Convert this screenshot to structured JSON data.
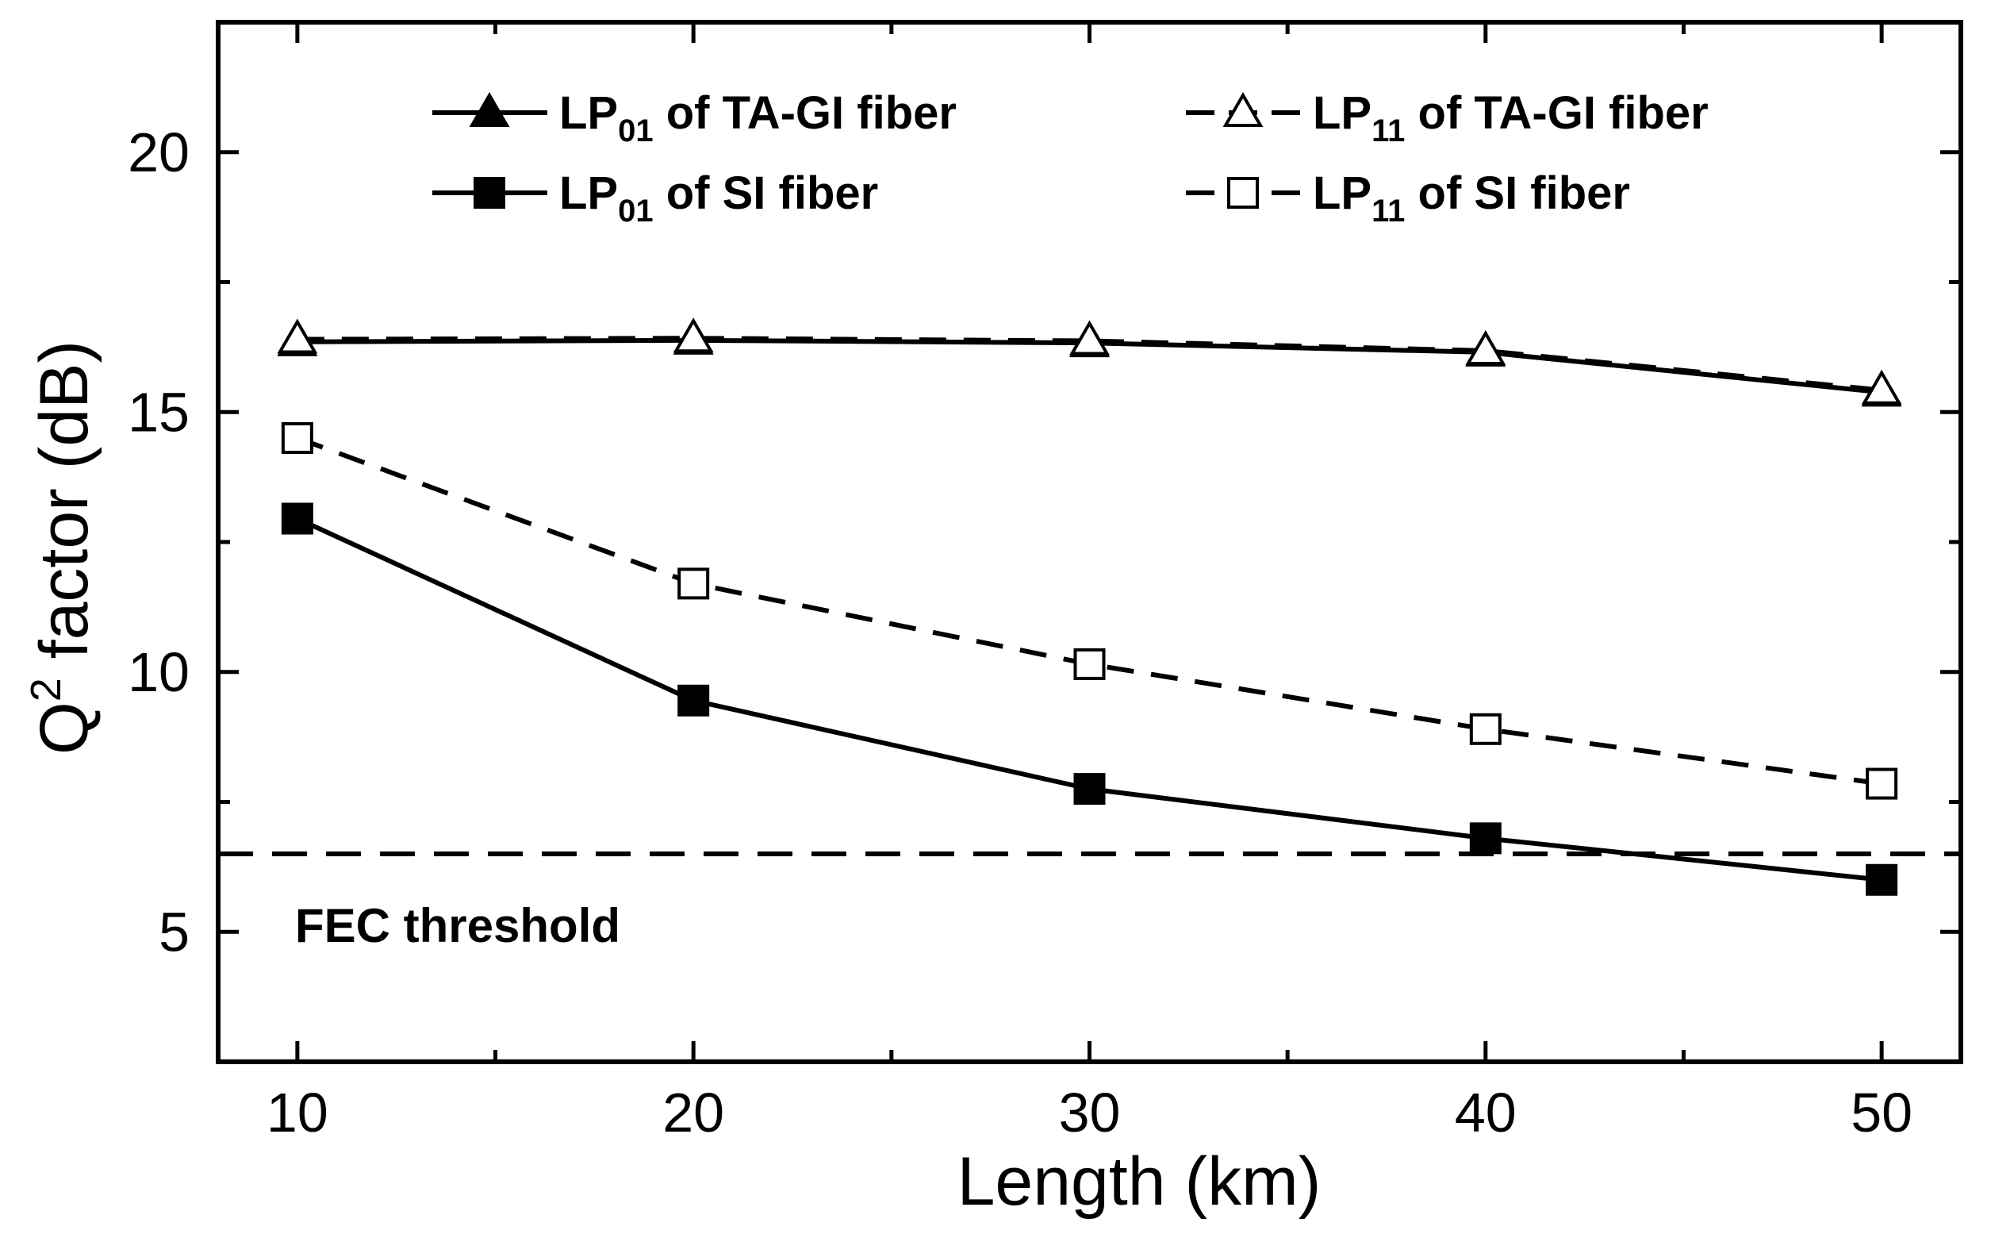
{
  "chart_data": {
    "type": "line",
    "title": "",
    "xlabel": "Length (km)",
    "ylabel": {
      "prefix": "Q",
      "sup": "2",
      "suffix": " factor (dB)"
    },
    "xlim": [
      8,
      52
    ],
    "ylim": [
      2.5,
      22.5
    ],
    "xticks": [
      10,
      20,
      30,
      40,
      50
    ],
    "yticks": [
      5,
      10,
      15,
      20
    ],
    "x": [
      10,
      20,
      30,
      40,
      50
    ],
    "series": [
      {
        "name": "LP01 of TA-GI fiber",
        "legend": {
          "base": "LP",
          "sub": "01",
          "rest": " of TA-GI fiber"
        },
        "marker": "triangle-filled",
        "dash": "solid",
        "values": [
          16.35,
          16.38,
          16.33,
          16.15,
          15.38
        ]
      },
      {
        "name": "LP11 of TA-GI fiber",
        "legend": {
          "base": "LP",
          "sub": "11",
          "rest": " of TA-GI fiber"
        },
        "marker": "triangle-open",
        "dash": "dashed",
        "values": [
          16.4,
          16.42,
          16.37,
          16.18,
          15.42
        ]
      },
      {
        "name": "LP01 of SI fiber",
        "legend": {
          "base": "LP",
          "sub": "01",
          "rest": " of SI fiber"
        },
        "marker": "square-filled",
        "dash": "solid",
        "values": [
          12.95,
          9.45,
          7.75,
          6.8,
          6.0
        ]
      },
      {
        "name": "LP11 of SI fiber",
        "legend": {
          "base": "LP",
          "sub": "11",
          "rest": " of SI fiber"
        },
        "marker": "square-open",
        "dash": "dashed",
        "values": [
          14.5,
          11.7,
          10.15,
          8.9,
          7.85
        ]
      }
    ],
    "threshold": {
      "value": 6.5,
      "label": "FEC threshold"
    },
    "legend_position": "top"
  }
}
